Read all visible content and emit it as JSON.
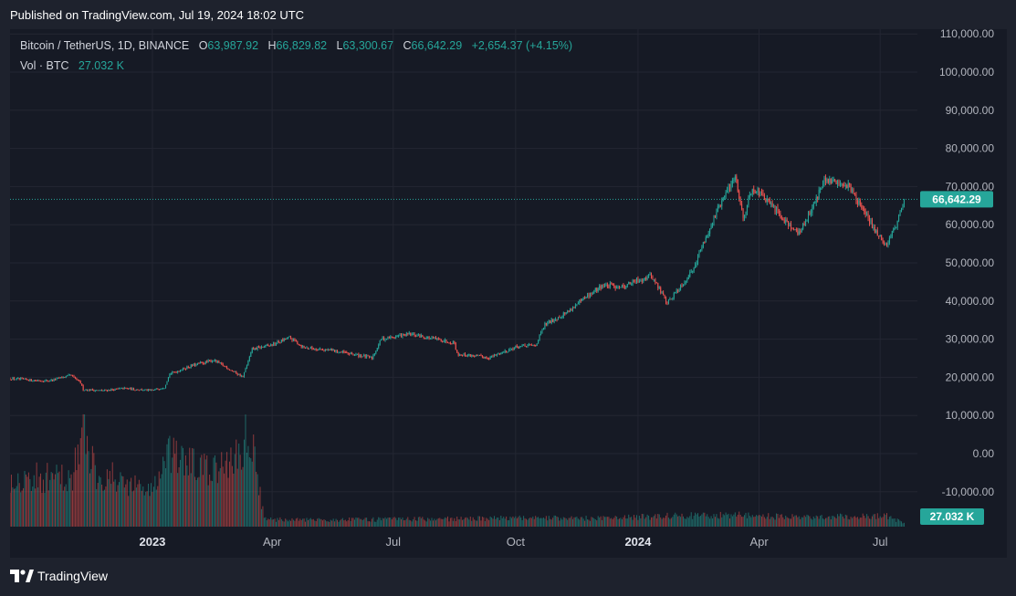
{
  "header": {
    "published": "Published on TradingView.com, Jul 19, 2024 18:02 UTC"
  },
  "legend": {
    "symbol": "Bitcoin / TetherUS, 1D, BINANCE",
    "o_label": "O",
    "o_value": "63,987.92",
    "h_label": "H",
    "h_value": "66,829.82",
    "l_label": "L",
    "l_value": "63,300.67",
    "c_label": "C",
    "c_value": "66,642.29",
    "change": "+2,654.37 (+4.15%)",
    "vol_label": "Vol · BTC",
    "vol_value": "27.032 K"
  },
  "footer": {
    "brand": "TradingView",
    "logo_icon": "tradingview-logo-icon"
  },
  "colors": {
    "up": "#26a69a",
    "down": "#ef5350",
    "background": "#161a25",
    "grid": "#232632",
    "text": "#b2b5be"
  },
  "chart_data": {
    "type": "candlestick",
    "symbol": "Bitcoin / TetherUS",
    "interval": "1D",
    "exchange": "BINANCE",
    "y_ticks": [
      110000,
      100000,
      90000,
      80000,
      70000,
      60000,
      50000,
      40000,
      30000,
      20000,
      10000,
      0,
      -10000
    ],
    "y_tick_labels": [
      "110,000.00",
      "100,000.00",
      "90,000.00",
      "80,000.00",
      "70,000.00",
      "60,000.00",
      "50,000.00",
      "40,000.00",
      "30,000.00",
      "20,000.00",
      "10,000.00",
      "0.00",
      "-10,000.00"
    ],
    "x_ticks": [
      "2023-01-01",
      "2023-04-01",
      "2023-07-01",
      "2023-10-01",
      "2024-01-01",
      "2024-04-01",
      "2024-07-01"
    ],
    "x_tick_labels": [
      "2023",
      "Apr",
      "Jul",
      "Oct",
      "2024",
      "Apr",
      "Jul"
    ],
    "x_tick_bold": [
      true,
      false,
      false,
      false,
      true,
      false,
      false
    ],
    "x_range": [
      "2022-09-16",
      "2024-07-29"
    ],
    "last_price": 66642.29,
    "last_price_label": "66,642.29",
    "last_volume_label": "27.032 K",
    "price_path": [
      [
        "2022-09-16",
        19700
      ],
      [
        "2022-10-01",
        19300
      ],
      [
        "2022-10-15",
        19100
      ],
      [
        "2022-11-01",
        20500
      ],
      [
        "2022-11-08",
        18500
      ],
      [
        "2022-11-10",
        16800
      ],
      [
        "2022-11-25",
        16500
      ],
      [
        "2022-12-10",
        17100
      ],
      [
        "2022-12-31",
        16550
      ],
      [
        "2023-01-10",
        17400
      ],
      [
        "2023-01-14",
        20900
      ],
      [
        "2023-01-31",
        23100
      ],
      [
        "2023-02-16",
        24500
      ],
      [
        "2023-03-10",
        20100
      ],
      [
        "2023-03-17",
        27300
      ],
      [
        "2023-04-01",
        28500
      ],
      [
        "2023-04-14",
        30400
      ],
      [
        "2023-04-25",
        27800
      ],
      [
        "2023-05-15",
        27100
      ],
      [
        "2023-06-15",
        25100
      ],
      [
        "2023-06-22",
        30000
      ],
      [
        "2023-07-13",
        31300
      ],
      [
        "2023-08-16",
        29100
      ],
      [
        "2023-08-18",
        26100
      ],
      [
        "2023-09-11",
        25200
      ],
      [
        "2023-10-01",
        27900
      ],
      [
        "2023-10-16",
        28400
      ],
      [
        "2023-10-23",
        33800
      ],
      [
        "2023-11-09",
        37200
      ],
      [
        "2023-12-05",
        44100
      ],
      [
        "2023-12-20",
        43800
      ],
      [
        "2024-01-11",
        46700
      ],
      [
        "2024-01-23",
        39500
      ],
      [
        "2024-02-10",
        47500
      ],
      [
        "2024-02-28",
        62500
      ],
      [
        "2024-03-14",
        73000
      ],
      [
        "2024-03-20",
        61900
      ],
      [
        "2024-03-27",
        70000
      ],
      [
        "2024-04-13",
        64000
      ],
      [
        "2024-05-01",
        57500
      ],
      [
        "2024-05-20",
        71400
      ],
      [
        "2024-06-07",
        70500
      ],
      [
        "2024-06-24",
        60300
      ],
      [
        "2024-07-05",
        54500
      ],
      [
        "2024-07-14",
        60700
      ],
      [
        "2024-07-19",
        66642.29
      ]
    ],
    "volume_axis_max_btc": 650000,
    "volume_path": [
      [
        "2022-09-16",
        340000
      ],
      [
        "2022-11-01",
        330000
      ],
      [
        "2022-11-10",
        640000
      ],
      [
        "2022-11-20",
        370000
      ],
      [
        "2022-12-31",
        250000
      ],
      [
        "2023-01-14",
        480000
      ],
      [
        "2023-02-16",
        370000
      ],
      [
        "2023-03-10",
        520000
      ],
      [
        "2023-03-14",
        720000
      ],
      [
        "2023-03-24",
        180000
      ],
      [
        "2023-03-26",
        50000
      ],
      [
        "2023-05-01",
        45000
      ],
      [
        "2023-10-23",
        60000
      ],
      [
        "2023-12-05",
        55000
      ],
      [
        "2024-01-11",
        70000
      ],
      [
        "2024-03-14",
        80000
      ],
      [
        "2024-05-01",
        65000
      ],
      [
        "2024-07-05",
        75000
      ],
      [
        "2024-07-19",
        27032
      ]
    ]
  }
}
